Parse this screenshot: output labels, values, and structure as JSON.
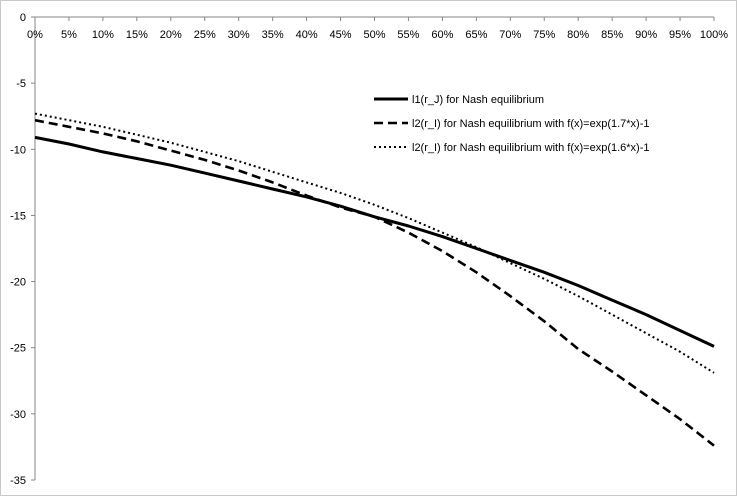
{
  "chart_data": {
    "type": "line",
    "x_tick_labels": [
      "0%",
      "5%",
      "10%",
      "15%",
      "20%",
      "25%",
      "30%",
      "35%",
      "40%",
      "45%",
      "50%",
      "55%",
      "60%",
      "65%",
      "70%",
      "75%",
      "80%",
      "85%",
      "90%",
      "95%",
      "100%"
    ],
    "x": [
      0,
      5,
      10,
      15,
      20,
      25,
      30,
      35,
      40,
      45,
      50,
      55,
      60,
      65,
      70,
      75,
      80,
      85,
      90,
      95,
      100
    ],
    "x_axis_position": "top",
    "ylim": [
      -35,
      0
    ],
    "y_ticks": [
      0,
      -5,
      -10,
      -15,
      -20,
      -25,
      -30,
      -35
    ],
    "grid": false,
    "legend_placement": "right-upper",
    "series": [
      {
        "name": "l1(r_J) for Nash equilibrium",
        "style": "solid",
        "color": "#000000",
        "values": [
          -9.1,
          -9.6,
          -10.2,
          -10.7,
          -11.2,
          -11.8,
          -12.4,
          -13.0,
          -13.6,
          -14.3,
          -15.1,
          -15.8,
          -16.6,
          -17.5,
          -18.4,
          -19.3,
          -20.3,
          -21.4,
          -22.5,
          -23.7,
          -24.9
        ]
      },
      {
        "name": "l2(r_I) for Nash equilibrium with f(x)=exp(1.7*x)-1",
        "style": "dashed",
        "color": "#000000",
        "values": [
          -7.8,
          -8.3,
          -8.8,
          -9.4,
          -10.1,
          -10.8,
          -11.6,
          -12.5,
          -13.5,
          -14.4,
          -15.1,
          -16.3,
          -17.7,
          -19.3,
          -21.1,
          -23.0,
          -25.1,
          -26.8,
          -28.6,
          -30.4,
          -32.4
        ]
      },
      {
        "name": "l2(r_I) for Nash equilibrium with f(x)=exp(1.6*x)-1",
        "style": "dotted",
        "color": "#000000",
        "values": [
          -7.3,
          -7.8,
          -8.3,
          -8.9,
          -9.5,
          -10.2,
          -10.9,
          -11.7,
          -12.5,
          -13.3,
          -14.2,
          -15.2,
          -16.3,
          -17.4,
          -18.6,
          -19.8,
          -21.1,
          -22.5,
          -23.9,
          -25.3,
          -26.9
        ]
      }
    ]
  }
}
